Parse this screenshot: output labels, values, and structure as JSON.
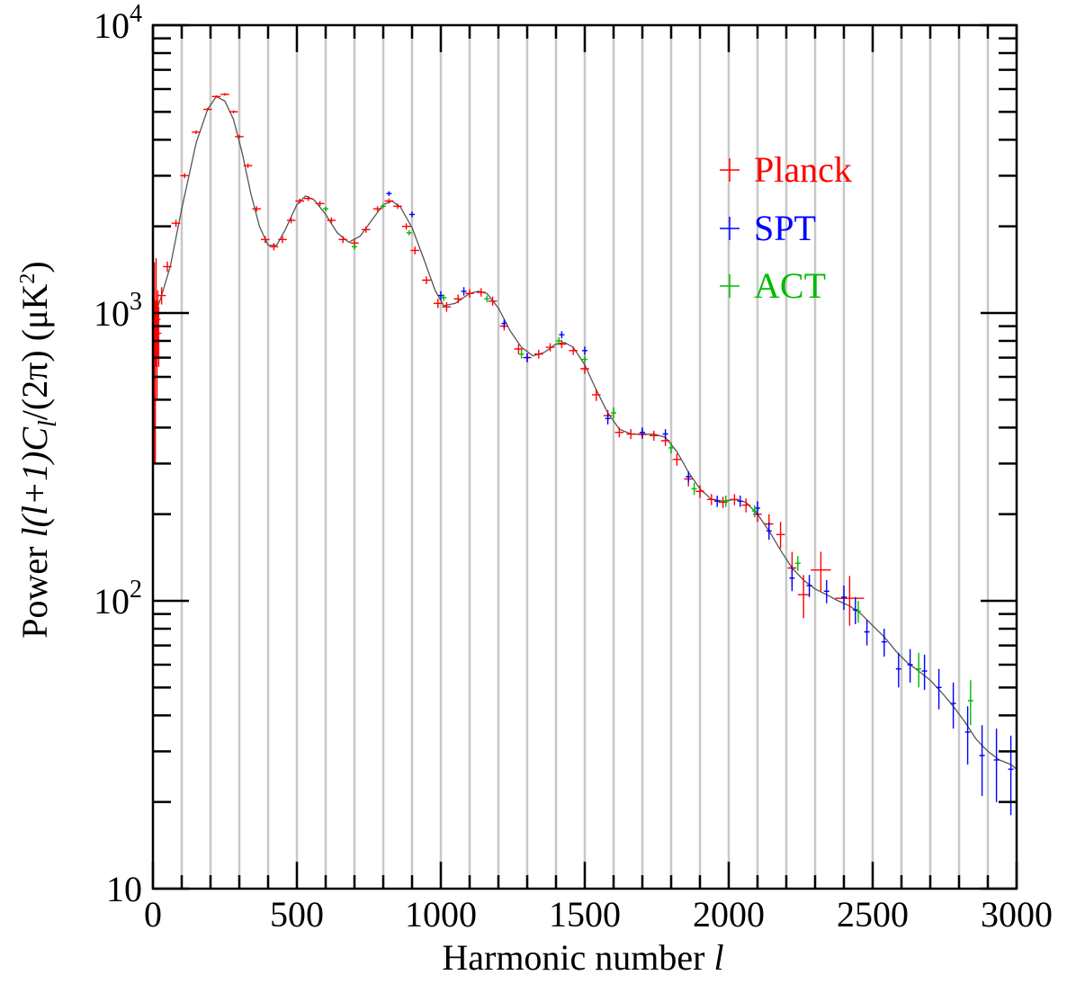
{
  "chart_data": {
    "type": "scatter",
    "title": "",
    "xlabel": "Harmonic number ",
    "xlabel_var": "l",
    "ylabel": {
      "prefix": "Power  ",
      "formula": "l(l+1)C",
      "subscript": "l",
      "suffix": "/(2π)  (μK",
      "sup": "2",
      "close": ")"
    },
    "xlim": [
      0,
      3000
    ],
    "ylim": [
      10,
      10000
    ],
    "yscale": "log",
    "x_ticks": [
      "0",
      "500",
      "1000",
      "1500",
      "2000",
      "2500",
      "3000"
    ],
    "y_ticks": [
      {
        "base": "10",
        "exp": "",
        "value": 10
      },
      {
        "base": "10",
        "exp": "2",
        "value": 100
      },
      {
        "base": "10",
        "exp": "3",
        "value": 1000
      },
      {
        "base": "10",
        "exp": "4",
        "value": 10000
      }
    ],
    "grid": "vertical lines every 100",
    "legend_position": "top-right",
    "series": [
      {
        "name": "Planck",
        "color": "#ff0000",
        "points": [
          [
            5,
            900,
            0,
            600
          ],
          [
            8,
            700,
            0,
            400
          ],
          [
            11,
            1100,
            0,
            450
          ],
          [
            14,
            800,
            0,
            300
          ],
          [
            17,
            950,
            0,
            250
          ],
          [
            20,
            850,
            0,
            200
          ],
          [
            30,
            1150,
            15,
            80
          ],
          [
            50,
            1450,
            15,
            60
          ],
          [
            80,
            2050,
            15,
            60
          ],
          [
            110,
            3000,
            15,
            60
          ],
          [
            150,
            4250,
            15,
            60
          ],
          [
            190,
            5100,
            15,
            60
          ],
          [
            220,
            5650,
            15,
            60
          ],
          [
            250,
            5750,
            15,
            60
          ],
          [
            280,
            5000,
            15,
            60
          ],
          [
            300,
            4100,
            15,
            60
          ],
          [
            330,
            3250,
            15,
            60
          ],
          [
            360,
            2300,
            15,
            50
          ],
          [
            390,
            1800,
            15,
            50
          ],
          [
            420,
            1700,
            15,
            50
          ],
          [
            450,
            1800,
            15,
            50
          ],
          [
            480,
            2100,
            15,
            50
          ],
          [
            510,
            2450,
            15,
            50
          ],
          [
            540,
            2500,
            15,
            50
          ],
          [
            580,
            2400,
            15,
            50
          ],
          [
            620,
            2100,
            15,
            50
          ],
          [
            660,
            1800,
            15,
            50
          ],
          [
            700,
            1750,
            15,
            50
          ],
          [
            740,
            1950,
            15,
            50
          ],
          [
            780,
            2300,
            15,
            50
          ],
          [
            820,
            2450,
            15,
            50
          ],
          [
            850,
            2350,
            15,
            50
          ],
          [
            880,
            2000,
            15,
            50
          ],
          [
            910,
            1650,
            15,
            50
          ],
          [
            950,
            1300,
            15,
            40
          ],
          [
            990,
            1080,
            15,
            40
          ],
          [
            1020,
            1050,
            15,
            40
          ],
          [
            1060,
            1120,
            15,
            40
          ],
          [
            1100,
            1170,
            15,
            40
          ],
          [
            1140,
            1180,
            15,
            40
          ],
          [
            1180,
            1100,
            15,
            40
          ],
          [
            1220,
            900,
            15,
            30
          ],
          [
            1270,
            750,
            15,
            30
          ],
          [
            1300,
            700,
            15,
            25
          ],
          [
            1340,
            720,
            15,
            25
          ],
          [
            1380,
            760,
            15,
            25
          ],
          [
            1420,
            780,
            15,
            25
          ],
          [
            1460,
            740,
            15,
            25
          ],
          [
            1500,
            640,
            15,
            25
          ],
          [
            1540,
            520,
            15,
            25
          ],
          [
            1580,
            440,
            15,
            20
          ],
          [
            1620,
            385,
            15,
            15
          ],
          [
            1660,
            380,
            15,
            15
          ],
          [
            1700,
            380,
            15,
            15
          ],
          [
            1740,
            375,
            15,
            15
          ],
          [
            1780,
            360,
            15,
            15
          ],
          [
            1820,
            310,
            15,
            15
          ],
          [
            1860,
            265,
            15,
            15
          ],
          [
            1900,
            240,
            15,
            12
          ],
          [
            1940,
            225,
            15,
            10
          ],
          [
            1980,
            220,
            15,
            10
          ],
          [
            2020,
            225,
            15,
            10
          ],
          [
            2060,
            215,
            15,
            12
          ],
          [
            2100,
            200,
            15,
            12
          ],
          [
            2140,
            185,
            15,
            15
          ],
          [
            2180,
            170,
            15,
            18
          ],
          [
            2220,
            130,
            15,
            18
          ],
          [
            2260,
            105,
            20,
            18
          ],
          [
            2320,
            128,
            35,
            20
          ],
          [
            2420,
            102,
            50,
            20
          ]
        ]
      },
      {
        "name": "SPT",
        "color": "#0000ff",
        "points": [
          [
            820,
            2600,
            8,
            50
          ],
          [
            900,
            2200,
            8,
            50
          ],
          [
            1000,
            1150,
            8,
            40
          ],
          [
            1080,
            1190,
            8,
            40
          ],
          [
            1220,
            920,
            8,
            30
          ],
          [
            1300,
            700,
            8,
            25
          ],
          [
            1420,
            840,
            8,
            25
          ],
          [
            1500,
            740,
            8,
            25
          ],
          [
            1580,
            430,
            8,
            20
          ],
          [
            1700,
            385,
            8,
            15
          ],
          [
            1780,
            380,
            8,
            15
          ],
          [
            1860,
            270,
            8,
            12
          ],
          [
            1960,
            222,
            8,
            10
          ],
          [
            2040,
            222,
            8,
            10
          ],
          [
            2100,
            210,
            8,
            12
          ],
          [
            2140,
            175,
            8,
            12
          ],
          [
            2220,
            120,
            8,
            12
          ],
          [
            2280,
            113,
            8,
            10
          ],
          [
            2340,
            108,
            8,
            10
          ],
          [
            2400,
            103,
            8,
            10
          ],
          [
            2440,
            93,
            8,
            10
          ],
          [
            2480,
            78,
            8,
            8
          ],
          [
            2540,
            72,
            8,
            8
          ],
          [
            2590,
            58,
            8,
            8
          ],
          [
            2630,
            60,
            8,
            8
          ],
          [
            2680,
            57,
            8,
            8
          ],
          [
            2730,
            50,
            8,
            8
          ],
          [
            2780,
            44,
            8,
            8
          ],
          [
            2830,
            35,
            8,
            8
          ],
          [
            2880,
            29,
            8,
            8
          ],
          [
            2930,
            28,
            8,
            8
          ],
          [
            2980,
            26,
            8,
            8
          ]
        ]
      },
      {
        "name": "ACT",
        "color": "#00bb00",
        "points": [
          [
            600,
            2300,
            8,
            40
          ],
          [
            700,
            1700,
            8,
            40
          ],
          [
            800,
            2350,
            8,
            40
          ],
          [
            890,
            1900,
            8,
            40
          ],
          [
            1010,
            1130,
            8,
            30
          ],
          [
            1160,
            1120,
            8,
            30
          ],
          [
            1280,
            720,
            8,
            25
          ],
          [
            1410,
            800,
            8,
            25
          ],
          [
            1500,
            690,
            8,
            20
          ],
          [
            1600,
            450,
            8,
            20
          ],
          [
            1800,
            340,
            8,
            15
          ],
          [
            1880,
            245,
            8,
            12
          ],
          [
            1990,
            222,
            8,
            10
          ],
          [
            2090,
            205,
            8,
            10
          ],
          [
            2240,
            135,
            8,
            8
          ],
          [
            2450,
            92,
            8,
            8
          ],
          [
            2660,
            58,
            8,
            8
          ],
          [
            2840,
            45,
            8,
            8
          ]
        ]
      }
    ],
    "model_curve": {
      "color": "#555555",
      "points": [
        [
          2,
          900
        ],
        [
          10,
          1000
        ],
        [
          30,
          1150
        ],
        [
          60,
          1450
        ],
        [
          100,
          2300
        ],
        [
          150,
          3900
        ],
        [
          190,
          5100
        ],
        [
          220,
          5650
        ],
        [
          250,
          5450
        ],
        [
          280,
          4700
        ],
        [
          310,
          3600
        ],
        [
          340,
          2600
        ],
        [
          370,
          2000
        ],
        [
          400,
          1720
        ],
        [
          430,
          1720
        ],
        [
          460,
          1950
        ],
        [
          500,
          2380
        ],
        [
          530,
          2550
        ],
        [
          560,
          2470
        ],
        [
          600,
          2200
        ],
        [
          640,
          1900
        ],
        [
          680,
          1760
        ],
        [
          720,
          1850
        ],
        [
          760,
          2100
        ],
        [
          800,
          2380
        ],
        [
          830,
          2450
        ],
        [
          860,
          2330
        ],
        [
          900,
          1980
        ],
        [
          940,
          1550
        ],
        [
          980,
          1200
        ],
        [
          1010,
          1060
        ],
        [
          1050,
          1080
        ],
        [
          1100,
          1170
        ],
        [
          1130,
          1190
        ],
        [
          1160,
          1170
        ],
        [
          1200,
          1040
        ],
        [
          1240,
          870
        ],
        [
          1280,
          760
        ],
        [
          1320,
          710
        ],
        [
          1360,
          730
        ],
        [
          1400,
          780
        ],
        [
          1430,
          790
        ],
        [
          1460,
          760
        ],
        [
          1500,
          660
        ],
        [
          1540,
          540
        ],
        [
          1580,
          450
        ],
        [
          1620,
          395
        ],
        [
          1660,
          380
        ],
        [
          1700,
          378
        ],
        [
          1740,
          380
        ],
        [
          1780,
          370
        ],
        [
          1820,
          330
        ],
        [
          1860,
          280
        ],
        [
          1900,
          245
        ],
        [
          1940,
          225
        ],
        [
          1980,
          222
        ],
        [
          2020,
          225
        ],
        [
          2060,
          220
        ],
        [
          2100,
          200
        ],
        [
          2140,
          175
        ],
        [
          2180,
          150
        ],
        [
          2220,
          130
        ],
        [
          2260,
          118
        ],
        [
          2300,
          110
        ],
        [
          2340,
          105
        ],
        [
          2380,
          100
        ],
        [
          2420,
          96
        ],
        [
          2460,
          90
        ],
        [
          2500,
          82
        ],
        [
          2540,
          75
        ],
        [
          2580,
          67
        ],
        [
          2620,
          61
        ],
        [
          2660,
          57
        ],
        [
          2700,
          53
        ],
        [
          2740,
          48
        ],
        [
          2780,
          43
        ],
        [
          2820,
          38
        ],
        [
          2860,
          33
        ],
        [
          2900,
          30
        ],
        [
          2940,
          28
        ],
        [
          2980,
          27
        ],
        [
          3000,
          26
        ]
      ]
    }
  }
}
